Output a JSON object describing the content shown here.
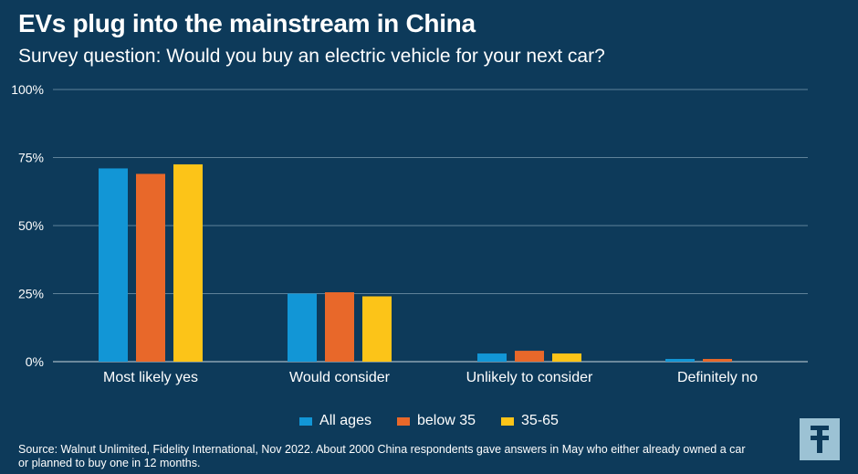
{
  "title": "EVs plug into the mainstream in China",
  "subtitle": "Survey question: Would you buy an electric vehicle for your next car?",
  "source": "Source: Walnut Unlimited, Fidelity International, Nov 2022. About 2000 China respondents gave answers in May who either already owned a car or planned to buy one in 12 months.",
  "colors": {
    "background": "#0d3a5a",
    "all_ages": "#1296d6",
    "below_35": "#e8682a",
    "age_35_65": "#fcc418",
    "logo_bg": "#9cc2d4",
    "logo_fg": "#0d3a5a"
  },
  "logo": {
    "icon": "fidelity-f-logo-icon"
  },
  "chart_data": {
    "type": "bar",
    "categories": [
      "Most likely yes",
      "Would consider",
      "Unlikely to consider",
      "Definitely no"
    ],
    "series": [
      {
        "name": "All ages",
        "values": [
          71,
          25,
          3,
          1
        ]
      },
      {
        "name": "below 35",
        "values": [
          69,
          25.5,
          4,
          1
        ]
      },
      {
        "name": "35-65",
        "values": [
          72.5,
          24,
          3,
          0
        ]
      }
    ],
    "ylim": [
      0,
      100
    ],
    "yticks": [
      "0%",
      "25%",
      "50%",
      "75%",
      "100%"
    ],
    "ytick_values": [
      0,
      25,
      50,
      75,
      100
    ],
    "grid": true,
    "legend": "bottom-center"
  }
}
